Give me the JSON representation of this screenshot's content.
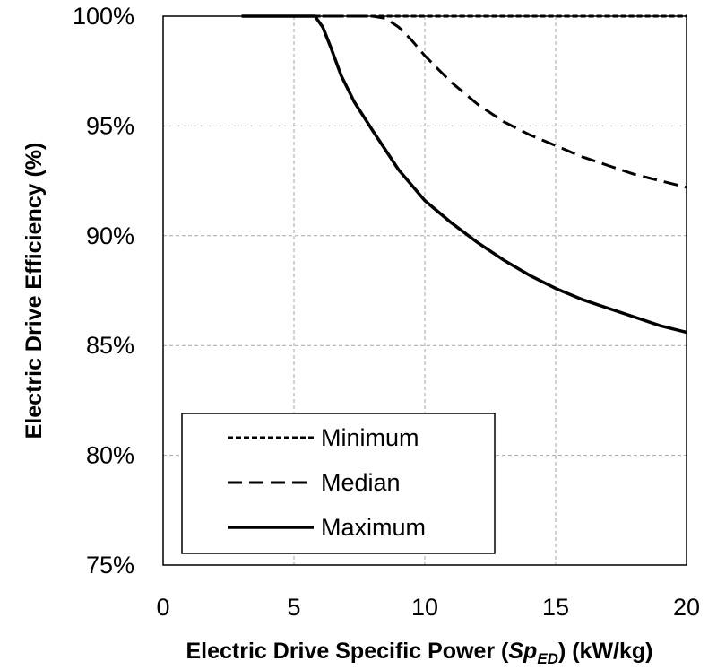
{
  "chart_data": {
    "type": "line",
    "title": "",
    "xlabel": {
      "prefix": "Electric Drive Specific Power (",
      "symbol": "Sp",
      "subscript": "ED",
      "suffix": ") (kW/kg)"
    },
    "ylabel": "Electric Drive Efficiency (%)",
    "xlim": [
      0,
      20
    ],
    "ylim": [
      75,
      100
    ],
    "x_ticks": [
      0,
      5,
      10,
      15,
      20
    ],
    "y_ticks": [
      75,
      80,
      85,
      90,
      95,
      100
    ],
    "y_tick_labels": [
      "75%",
      "80%",
      "85%",
      "90%",
      "95%",
      "100%"
    ],
    "x_tick_labels": [
      "0",
      "5",
      "10",
      "15",
      "20"
    ],
    "grid": true,
    "legend_position": "bottom-left",
    "series": [
      {
        "name": "Minimum",
        "style": "dotted",
        "x": [
          3,
          5,
          8,
          10,
          12,
          15,
          17,
          20
        ],
        "y": [
          100,
          100,
          100,
          100,
          100,
          100,
          100,
          100
        ]
      },
      {
        "name": "Median",
        "style": "dashed",
        "x": [
          3,
          5,
          8,
          8.5,
          9,
          9.5,
          10,
          10.5,
          11,
          12,
          13,
          14,
          15,
          16,
          17,
          18,
          19,
          20
        ],
        "y": [
          100,
          100,
          100,
          99.9,
          99.5,
          98.9,
          98.2,
          97.6,
          97.0,
          96.0,
          95.2,
          94.6,
          94.1,
          93.6,
          93.2,
          92.8,
          92.5,
          92.2
        ]
      },
      {
        "name": "Maximum",
        "style": "solid",
        "x": [
          3,
          5,
          5.8,
          6.1,
          6.4,
          6.8,
          7.3,
          8,
          9,
          10,
          11,
          12,
          13,
          14,
          15,
          16,
          17,
          18,
          19,
          20
        ],
        "y": [
          100,
          100,
          100,
          99.5,
          98.6,
          97.3,
          96.1,
          94.8,
          93.0,
          91.6,
          90.6,
          89.7,
          88.9,
          88.2,
          87.6,
          87.1,
          86.7,
          86.3,
          85.9,
          85.6
        ]
      }
    ]
  }
}
